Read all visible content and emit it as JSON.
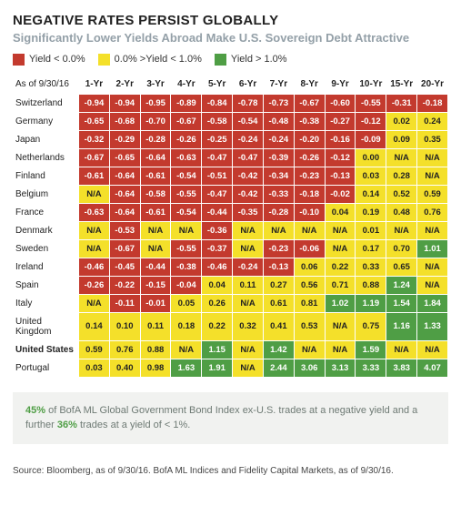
{
  "title": "NEGATIVE RATES PERSIST GLOBALLY",
  "subtitle": "Significantly Lower Yields Abroad Make U.S. Sovereign Debt Attractive",
  "legend": {
    "red": {
      "label": "Yield < 0.0%",
      "color": "#c33a2e"
    },
    "yellow": {
      "label": "0.0% >Yield < 1.0%",
      "color": "#f4e02a"
    },
    "green": {
      "label": "Yield > 1.0%",
      "color": "#4f9e45"
    }
  },
  "as_of_label": "As of 9/30/16",
  "columns": [
    "1-Yr",
    "2-Yr",
    "3-Yr",
    "4-Yr",
    "5-Yr",
    "6-Yr",
    "7-Yr",
    "8-Yr",
    "9-Yr",
    "10-Yr",
    "15-Yr",
    "20-Yr"
  ],
  "colors": {
    "red": "#c33a2e",
    "yellow": "#f4e02a",
    "green": "#4f9e45",
    "text_on_red": "#ffffff",
    "text_on_yellow": "#222222",
    "text_on_green": "#ffffff",
    "subtitle": "#94a0a8",
    "note_bg": "#f1f2f0",
    "note_text": "#6e7a74"
  },
  "rows": [
    {
      "country": "Switzerland",
      "vals": [
        "-0.94",
        "-0.94",
        "-0.95",
        "-0.89",
        "-0.84",
        "-0.78",
        "-0.73",
        "-0.67",
        "-0.60",
        "-0.55",
        "-0.31",
        "-0.18"
      ]
    },
    {
      "country": "Germany",
      "vals": [
        "-0.65",
        "-0.68",
        "-0.70",
        "-0.67",
        "-0.58",
        "-0.54",
        "-0.48",
        "-0.38",
        "-0.27",
        "-0.12",
        "0.02",
        "0.24"
      ]
    },
    {
      "country": "Japan",
      "vals": [
        "-0.32",
        "-0.29",
        "-0.28",
        "-0.26",
        "-0.25",
        "-0.24",
        "-0.24",
        "-0.20",
        "-0.16",
        "-0.09",
        "0.09",
        "0.35"
      ]
    },
    {
      "country": "Netherlands",
      "vals": [
        "-0.67",
        "-0.65",
        "-0.64",
        "-0.63",
        "-0.47",
        "-0.47",
        "-0.39",
        "-0.26",
        "-0.12",
        "0.00",
        "N/A",
        "N/A"
      ]
    },
    {
      "country": "Finland",
      "vals": [
        "-0.61",
        "-0.64",
        "-0.61",
        "-0.54",
        "-0.51",
        "-0.42",
        "-0.34",
        "-0.23",
        "-0.13",
        "0.03",
        "0.28",
        "N/A"
      ]
    },
    {
      "country": "Belgium",
      "vals": [
        "N/A",
        "-0.64",
        "-0.58",
        "-0.55",
        "-0.47",
        "-0.42",
        "-0.33",
        "-0.18",
        "-0.02",
        "0.14",
        "0.52",
        "0.59"
      ]
    },
    {
      "country": "France",
      "vals": [
        "-0.63",
        "-0.64",
        "-0.61",
        "-0.54",
        "-0.44",
        "-0.35",
        "-0.28",
        "-0.10",
        "0.04",
        "0.19",
        "0.48",
        "0.76"
      ]
    },
    {
      "country": "Denmark",
      "vals": [
        "N/A",
        "-0.53",
        "N/A",
        "N/A",
        "-0.36",
        "N/A",
        "N/A",
        "N/A",
        "N/A",
        "0.01",
        "N/A",
        "N/A"
      ]
    },
    {
      "country": "Sweden",
      "vals": [
        "N/A",
        "-0.67",
        "N/A",
        "-0.55",
        "-0.37",
        "N/A",
        "-0.23",
        "-0.06",
        "N/A",
        "0.17",
        "0.70",
        "1.01"
      ]
    },
    {
      "country": "Ireland",
      "vals": [
        "-0.46",
        "-0.45",
        "-0.44",
        "-0.38",
        "-0.46",
        "-0.24",
        "-0.13",
        "0.06",
        "0.22",
        "0.33",
        "0.65",
        "N/A"
      ]
    },
    {
      "country": "Spain",
      "vals": [
        "-0.26",
        "-0.22",
        "-0.15",
        "-0.04",
        "0.04",
        "0.11",
        "0.27",
        "0.56",
        "0.71",
        "0.88",
        "1.24",
        "N/A"
      ]
    },
    {
      "country": "Italy",
      "vals": [
        "N/A",
        "-0.11",
        "-0.01",
        "0.05",
        "0.26",
        "N/A",
        "0.61",
        "0.81",
        "1.02",
        "1.19",
        "1.54",
        "1.84"
      ]
    },
    {
      "country": "United Kingdom",
      "vals": [
        "0.14",
        "0.10",
        "0.11",
        "0.18",
        "0.22",
        "0.32",
        "0.41",
        "0.53",
        "N/A",
        "0.75",
        "1.16",
        "1.33"
      ]
    },
    {
      "country": "United States",
      "bold": true,
      "vals": [
        "0.59",
        "0.76",
        "0.88",
        "N/A",
        "1.15",
        "N/A",
        "1.42",
        "N/A",
        "N/A",
        "1.59",
        "N/A",
        "N/A"
      ]
    },
    {
      "country": "Portugal",
      "vals": [
        "0.03",
        "0.40",
        "0.98",
        "1.63",
        "1.91",
        "N/A",
        "2.44",
        "3.06",
        "3.13",
        "3.33",
        "3.83",
        "4.07"
      ]
    }
  ],
  "note": {
    "pct1": "45%",
    "mid1": " of BofA ML Global Government Bond Index ex-U.S. trades at a negative yield and a further ",
    "pct2": "36%",
    "mid2": " trades at a yield of < 1%."
  },
  "source": "Source: Bloomberg, as of 9/30/16. BofA ML Indices and Fidelity Capital Markets, as of 9/30/16."
}
